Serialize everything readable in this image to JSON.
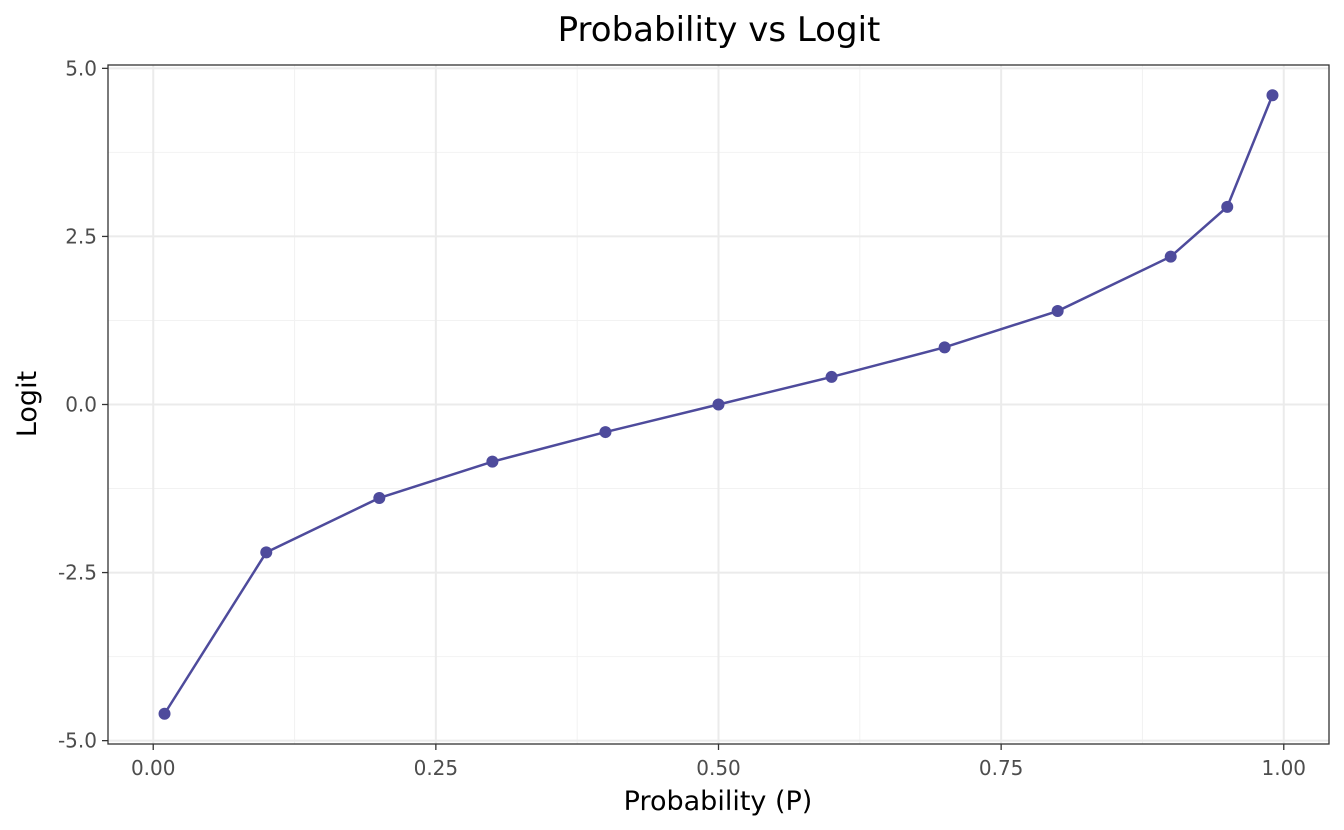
{
  "chart_data": {
    "type": "line",
    "title": "Probability vs Logit",
    "xlabel": "Probability (P)",
    "ylabel": "Logit",
    "xlim": [
      -0.04,
      1.04
    ],
    "ylim": [
      -5.05,
      5.05
    ],
    "x_ticks": [
      0.0,
      0.25,
      0.5,
      0.75,
      1.0
    ],
    "x_tick_labels": [
      "0.00",
      "0.25",
      "0.50",
      "0.75",
      "1.00"
    ],
    "y_ticks": [
      -5.0,
      -2.5,
      0.0,
      2.5,
      5.0
    ],
    "y_tick_labels": [
      "-5.0",
      "-2.5",
      "0.0",
      "2.5",
      "5.0"
    ],
    "grid": true,
    "series": [
      {
        "color": "#4e4b9c",
        "x": [
          0.01,
          0.1,
          0.2,
          0.3,
          0.4,
          0.5,
          0.6,
          0.7,
          0.8,
          0.9,
          0.95,
          0.99
        ],
        "y": [
          -4.6,
          -2.2,
          -1.39,
          -0.85,
          -0.41,
          0.0,
          0.41,
          0.85,
          1.39,
          2.2,
          2.94,
          4.6
        ]
      }
    ]
  }
}
